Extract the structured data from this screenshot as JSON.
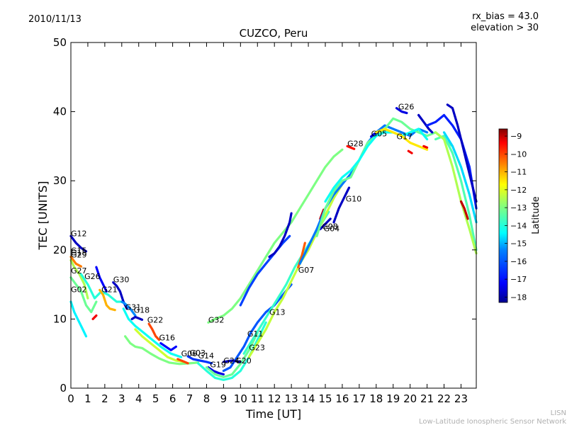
{
  "date_text": "2010/11/13",
  "info_lines": [
    "rx_bias = 43.0",
    "elevation > 30"
  ],
  "credit_lines": [
    "LISN",
    "Low-Latitude Ionospheric Sensor Network"
  ],
  "chart_data": {
    "type": "scatter",
    "title": "CUZCO, Peru",
    "xlabel": "Time [UT]",
    "ylabel": "TEC [UNITS]",
    "xlim": [
      0,
      23.9
    ],
    "ylim": [
      0,
      50
    ],
    "xticks": [
      0,
      1,
      2,
      3,
      4,
      5,
      6,
      7,
      8,
      9,
      10,
      11,
      12,
      13,
      14,
      15,
      16,
      17,
      18,
      19,
      20,
      21,
      22,
      23
    ],
    "yticks": [
      0,
      10,
      20,
      30,
      40,
      50
    ],
    "grid": false,
    "colorbar": {
      "label": "Latitude",
      "range": [
        -18.3,
        -8.6
      ],
      "ticks": [
        -9,
        -10,
        -11,
        -12,
        -13,
        -14,
        -15,
        -16,
        -17,
        -18
      ],
      "colormap": [
        "#00008f",
        "#0000ff",
        "#0080ff",
        "#00ffff",
        "#80ff80",
        "#ffff00",
        "#ff8000",
        "#ff0000",
        "#800000"
      ]
    },
    "satellite_labels": [
      {
        "name": "G12",
        "x": 0.0,
        "y": 22.0
      },
      {
        "name": "G15",
        "x": 0.0,
        "y": 19.5
      },
      {
        "name": "G18",
        "x": 0.0,
        "y": 19.2
      },
      {
        "name": "G29",
        "x": 0.0,
        "y": 18.9
      },
      {
        "name": "G27",
        "x": 0.0,
        "y": 16.6
      },
      {
        "name": "G26",
        "x": 0.8,
        "y": 15.8
      },
      {
        "name": "G30",
        "x": 2.5,
        "y": 15.3
      },
      {
        "name": "G02",
        "x": 0.0,
        "y": 13.9
      },
      {
        "name": "G21",
        "x": 1.8,
        "y": 13.9
      },
      {
        "name": "G31",
        "x": 3.2,
        "y": 11.3
      },
      {
        "name": "G18",
        "x": 3.7,
        "y": 10.9
      },
      {
        "name": "G22",
        "x": 4.5,
        "y": 9.5
      },
      {
        "name": "G32",
        "x": 8.1,
        "y": 9.5
      },
      {
        "name": "G16",
        "x": 5.2,
        "y": 6.9
      },
      {
        "name": "G06",
        "x": 6.5,
        "y": 4.6
      },
      {
        "name": "G03",
        "x": 7.0,
        "y": 4.7
      },
      {
        "name": "G14",
        "x": 7.5,
        "y": 4.3
      },
      {
        "name": "G19",
        "x": 8.2,
        "y": 3.0
      },
      {
        "name": "G24",
        "x": 9.0,
        "y": 3.6
      },
      {
        "name": "G20",
        "x": 9.7,
        "y": 3.6
      },
      {
        "name": "G23",
        "x": 10.5,
        "y": 5.5
      },
      {
        "name": "G11",
        "x": 10.4,
        "y": 7.5
      },
      {
        "name": "G13",
        "x": 11.7,
        "y": 10.6
      },
      {
        "name": "G07",
        "x": 13.4,
        "y": 16.7
      },
      {
        "name": "G08",
        "x": 14.8,
        "y": 23.0
      },
      {
        "name": "G04",
        "x": 14.9,
        "y": 22.7
      },
      {
        "name": "G10",
        "x": 16.2,
        "y": 27.0
      },
      {
        "name": "G28",
        "x": 16.3,
        "y": 35.0
      },
      {
        "name": "G05",
        "x": 17.7,
        "y": 36.4
      },
      {
        "name": "G17",
        "x": 19.2,
        "y": 36.0
      },
      {
        "name": "G26",
        "x": 19.3,
        "y": 40.3
      }
    ],
    "series": [
      {
        "lat": -17.8,
        "x": [
          0,
          0.3,
          0.6,
          0.9
        ],
        "y": [
          22.0,
          21.0,
          20.3,
          19.8
        ]
      },
      {
        "lat": -12.5,
        "x": [
          0,
          0.2,
          0.5,
          0.8,
          1.0
        ],
        "y": [
          18.5,
          17.5,
          16.5,
          15.0,
          13.0
        ]
      },
      {
        "lat": -10.5,
        "x": [
          0,
          0.3,
          0.6
        ],
        "y": [
          19.0,
          18.0,
          17.6
        ]
      },
      {
        "lat": -14.5,
        "x": [
          0,
          0.2,
          0.4,
          0.7,
          0.9
        ],
        "y": [
          12.5,
          11.0,
          10.0,
          8.5,
          7.5
        ]
      },
      {
        "lat": -13.2,
        "x": [
          0,
          0.3,
          0.6,
          0.9,
          1.2,
          1.5
        ],
        "y": [
          16.0,
          15.0,
          14.0,
          12.0,
          11.0,
          12.5
        ]
      },
      {
        "lat": -14.0,
        "x": [
          0.6,
          1.0,
          1.4,
          1.8,
          2.2,
          2.7,
          3.1
        ],
        "y": [
          16.5,
          15.0,
          13.0,
          14.0,
          13.5,
          12.5,
          12.5
        ]
      },
      {
        "lat": -11.0,
        "x": [
          1.7,
          1.9,
          2.1,
          2.3,
          2.6
        ],
        "y": [
          14.2,
          13.5,
          12.0,
          11.5,
          11.3
        ]
      },
      {
        "lat": -9.3,
        "x": [
          1.3,
          1.5
        ],
        "y": [
          10.0,
          10.5
        ]
      },
      {
        "lat": -17.2,
        "x": [
          1.5,
          1.7,
          1.9,
          2.1
        ],
        "y": [
          17.5,
          16.0,
          15.0,
          14.0
        ]
      },
      {
        "lat": -17.8,
        "x": [
          2.5,
          2.7,
          2.9,
          3.1,
          3.3
        ],
        "y": [
          15.3,
          14.8,
          14.0,
          12.5,
          11.5
        ]
      },
      {
        "lat": -15.3,
        "x": [
          3.0,
          3.2,
          3.5,
          3.8
        ],
        "y": [
          12.5,
          12.2,
          11.5,
          10.5
        ]
      },
      {
        "lat": -17.8,
        "x": [
          3.6,
          3.8,
          4.0,
          4.2
        ],
        "y": [
          10.0,
          10.3,
          10.1,
          9.9
        ]
      },
      {
        "lat": -13.0,
        "x": [
          3.2,
          3.5,
          3.8,
          4.2,
          4.7,
          5.2,
          5.8,
          6.4,
          7.0,
          7.5
        ],
        "y": [
          7.5,
          6.5,
          6.0,
          5.8,
          5.0,
          4.3,
          3.7,
          3.5,
          3.6,
          3.7
        ]
      },
      {
        "lat": -14.3,
        "x": [
          3.1,
          3.4,
          3.8,
          4.3,
          4.8,
          5.3,
          5.9,
          6.5
        ],
        "y": [
          11.5,
          10.0,
          9.0,
          8.0,
          7.0,
          6.0,
          5.0,
          4.5
        ]
      },
      {
        "lat": -12.2,
        "x": [
          3.8,
          4.2,
          4.7,
          5.2,
          5.7,
          6.2,
          6.7
        ],
        "y": [
          8.5,
          7.5,
          6.5,
          5.5,
          4.5,
          4.0,
          3.8
        ]
      },
      {
        "lat": -10.0,
        "x": [
          4.6,
          4.8,
          5.0,
          5.2
        ],
        "y": [
          9.3,
          8.5,
          7.5,
          7.0
        ]
      },
      {
        "lat": -17.2,
        "x": [
          5.3,
          5.6,
          5.9,
          6.2
        ],
        "y": [
          6.5,
          6.0,
          5.5,
          6.0
        ]
      },
      {
        "lat": -10.0,
        "x": [
          6.3,
          6.6,
          6.9
        ],
        "y": [
          4.2,
          3.9,
          3.6
        ]
      },
      {
        "lat": -16.5,
        "x": [
          6.9,
          7.2,
          7.6,
          8.0,
          8.3
        ],
        "y": [
          4.6,
          4.2,
          4.0,
          3.8,
          3.6
        ]
      },
      {
        "lat": -17.5,
        "x": [
          8.1,
          8.4,
          8.7,
          9.0
        ],
        "y": [
          3.0,
          2.5,
          2.2,
          2.0
        ]
      },
      {
        "lat": -14.0,
        "x": [
          7.5,
          8.0,
          8.5,
          9.0,
          9.5,
          10.0,
          10.5,
          11.0,
          11.5
        ],
        "y": [
          3.6,
          2.5,
          1.5,
          1.2,
          1.5,
          2.5,
          4.5,
          7.0,
          9.5
        ]
      },
      {
        "lat": -13.2,
        "x": [
          8.0,
          8.5,
          9.0,
          9.5,
          10.0,
          10.5,
          11.0
        ],
        "y": [
          3.0,
          2.0,
          1.6,
          2.0,
          3.5,
          5.5,
          8.0
        ]
      },
      {
        "lat": -16.0,
        "x": [
          9.0,
          9.4,
          9.8,
          10.2,
          10.6,
          11.0,
          11.5,
          12.0,
          12.5,
          13.0
        ],
        "y": [
          2.5,
          3.0,
          4.5,
          6.0,
          8.0,
          9.5,
          11.0,
          12.0,
          13.5,
          15.0
        ]
      },
      {
        "lat": -17.8,
        "x": [
          9.0,
          9.5,
          10.0
        ],
        "y": [
          3.8,
          4.0,
          3.8
        ]
      },
      {
        "lat": -13.0,
        "x": [
          8.1,
          8.5,
          9.0,
          9.5,
          10.0,
          10.5,
          11.0,
          11.5,
          12.0,
          12.5,
          13.0,
          13.5,
          14.0,
          14.5,
          15.0,
          15.5,
          16.0
        ],
        "y": [
          9.5,
          10.0,
          10.5,
          11.5,
          13.0,
          15.0,
          17.0,
          19.0,
          21.0,
          22.5,
          24.0,
          26.0,
          28.0,
          30.0,
          32.0,
          33.5,
          34.5
        ]
      },
      {
        "lat": -16.3,
        "x": [
          10.0,
          10.5,
          11.0,
          11.5,
          12.0,
          12.5,
          12.9
        ],
        "y": [
          12.0,
          14.5,
          16.5,
          18.0,
          19.5,
          21.0,
          22.0
        ]
      },
      {
        "lat": -17.8,
        "x": [
          11.7,
          12.0,
          12.3,
          12.6,
          12.9,
          13.0
        ],
        "y": [
          19.0,
          19.5,
          20.5,
          22.0,
          24.0,
          25.3
        ]
      },
      {
        "lat": -13.8,
        "x": [
          10.2,
          10.7,
          11.2,
          11.7,
          12.2,
          12.7,
          13.2,
          13.7,
          14.2,
          14.7,
          15.2
        ],
        "y": [
          5.0,
          7.0,
          9.0,
          11.0,
          13.0,
          15.0,
          17.5,
          19.5,
          21.5,
          23.5,
          25.5
        ]
      },
      {
        "lat": -12.3,
        "x": [
          10.5,
          11.0,
          11.5,
          12.0,
          12.5,
          13.0,
          13.5,
          14.0,
          14.5,
          15.0,
          15.5,
          16.0
        ],
        "y": [
          4.5,
          6.5,
          8.5,
          11.0,
          13.0,
          15.5,
          18.0,
          20.0,
          22.5,
          25.0,
          27.5,
          29.5
        ]
      },
      {
        "lat": -10.2,
        "x": [
          13.4,
          13.6,
          13.8
        ],
        "y": [
          17.5,
          19.0,
          21.0
        ]
      },
      {
        "lat": -9.0,
        "x": [
          14.7,
          14.9
        ],
        "y": [
          24.5,
          25.8
        ]
      },
      {
        "lat": -17.8,
        "x": [
          14.7,
          14.9,
          15.1,
          15.3
        ],
        "y": [
          23.0,
          23.5,
          24.0,
          24.5
        ]
      },
      {
        "lat": -17.8,
        "x": [
          15.5,
          15.8,
          16.1,
          16.4
        ],
        "y": [
          24.0,
          26.0,
          27.5,
          29.0
        ]
      },
      {
        "lat": -15.5,
        "x": [
          13.5,
          14.0,
          14.5,
          15.0,
          15.5,
          16.0,
          16.5,
          17.0,
          17.5,
          18.0,
          18.5,
          19.0,
          19.5,
          20.0,
          20.5,
          21.0
        ],
        "y": [
          18.0,
          20.5,
          23.0,
          26.0,
          28.0,
          29.5,
          31.0,
          33.0,
          35.5,
          37.0,
          38.0,
          37.5,
          37.0,
          36.5,
          37.5,
          37.0
        ]
      },
      {
        "lat": -13.2,
        "x": [
          14.5,
          15.0,
          15.5,
          16.0,
          16.5,
          17.0,
          17.5,
          18.0,
          18.5,
          19.0,
          19.5,
          20.0,
          20.5,
          21.0,
          21.5,
          22.0,
          22.5
        ],
        "y": [
          22.0,
          26.0,
          28.5,
          30.0,
          30.5,
          33.0,
          35.5,
          36.5,
          37.5,
          39.0,
          38.5,
          37.5,
          37.0,
          36.5,
          37.0,
          36.0,
          35.0
        ]
      },
      {
        "lat": -14.3,
        "x": [
          15.0,
          15.5,
          16.0,
          16.5,
          17.0,
          17.5,
          18.0,
          18.5,
          19.0,
          19.5,
          20.0,
          20.5,
          21.0
        ],
        "y": [
          27.0,
          29.0,
          30.5,
          31.5,
          33.0,
          35.0,
          36.5,
          37.0,
          37.0,
          36.5,
          37.0,
          37.5,
          36.0
        ]
      },
      {
        "lat": -9.5,
        "x": [
          16.3,
          16.5,
          16.7
        ],
        "y": [
          35.0,
          34.8,
          34.6
        ]
      },
      {
        "lat": -17.5,
        "x": [
          17.7,
          17.9,
          18.1
        ],
        "y": [
          36.4,
          36.8,
          37.0
        ]
      },
      {
        "lat": -11.5,
        "x": [
          18.0,
          18.5,
          19.0,
          19.5,
          20.0,
          20.5,
          21.0
        ],
        "y": [
          37.0,
          37.5,
          37.0,
          36.5,
          35.5,
          35.0,
          34.5
        ]
      },
      {
        "lat": -9.3,
        "x": [
          19.9,
          20.1
        ],
        "y": [
          34.3,
          34.0
        ]
      },
      {
        "lat": -9.3,
        "x": [
          20.8,
          21.0
        ],
        "y": [
          35.0,
          34.8
        ]
      },
      {
        "lat": -17.5,
        "x": [
          19.2,
          19.5,
          19.8
        ],
        "y": [
          40.5,
          40.0,
          39.8
        ]
      },
      {
        "lat": -17.8,
        "x": [
          20.5,
          20.8,
          21.1,
          21.3
        ],
        "y": [
          39.5,
          38.5,
          37.5,
          37.0
        ]
      },
      {
        "lat": -16.8,
        "x": [
          21.0,
          21.5,
          22.0,
          22.5,
          23.0,
          23.5,
          23.9
        ],
        "y": [
          38.0,
          38.5,
          39.5,
          38.0,
          36.0,
          32.0,
          26.0
        ]
      },
      {
        "lat": -17.8,
        "x": [
          22.2,
          22.5,
          22.8,
          23.1,
          23.4,
          23.7,
          23.9
        ],
        "y": [
          41.0,
          40.5,
          38.0,
          35.0,
          32.0,
          29.0,
          27.0
        ]
      },
      {
        "lat": -13.5,
        "x": [
          21.5,
          22.0,
          22.5,
          23.0,
          23.5,
          23.9
        ],
        "y": [
          36.0,
          36.5,
          34.0,
          30.0,
          25.0,
          20.0
        ]
      },
      {
        "lat": -12.5,
        "x": [
          21.5,
          22.0,
          22.5,
          23.0,
          23.5,
          23.9
        ],
        "y": [
          37.0,
          36.0,
          32.0,
          27.0,
          23.0,
          19.5
        ]
      },
      {
        "lat": -14.7,
        "x": [
          22.0,
          22.5,
          23.0,
          23.5,
          23.9
        ],
        "y": [
          37.0,
          35.0,
          32.0,
          28.0,
          24.0
        ]
      },
      {
        "lat": -9.0,
        "x": [
          23.0,
          23.2,
          23.4
        ],
        "y": [
          27.0,
          26.0,
          24.5
        ]
      }
    ]
  }
}
